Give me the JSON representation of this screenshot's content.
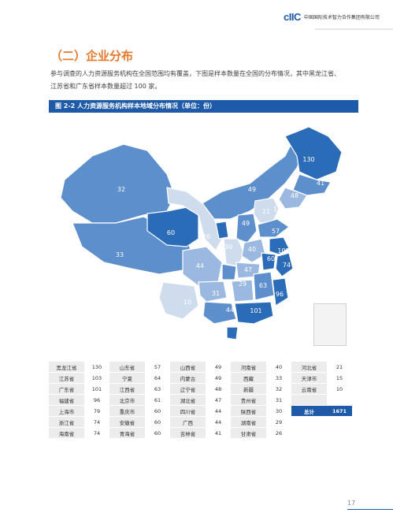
{
  "header": {
    "logo": "cIIC",
    "company": "中国国际技术智力合作集团有限公司"
  },
  "section_title": "（二）企业分布",
  "paragraph": [
    "参与调查的人力资源服务机构在全国范围均有覆盖，下图是样本数量在全国的分布情况，其中黑龙江省、",
    "江苏省和广东省样本数量超过 100 家。"
  ],
  "figure_title": "图 2-2  人力资源服务机构样本地域分布情况（单位：份）",
  "map_labels": [
    "130",
    "49",
    "41",
    "48",
    "21",
    "15",
    "57",
    "32",
    "60",
    "33",
    "26",
    "30",
    "40",
    "103",
    "60",
    "74",
    "49",
    "44",
    "47",
    "29",
    "63",
    "96",
    "31",
    "10",
    "44",
    "101"
  ],
  "colors": {
    "dark": "#2b6cb8",
    "mid": "#5d8fcd",
    "light": "#9bb9e0",
    "pale": "#cfdcee",
    "bar": "#1e5aa8"
  },
  "table": {
    "rows": [
      [
        [
          "黑龙江省",
          "130"
        ],
        [
          "山东省",
          "57"
        ],
        [
          "山西省",
          "49"
        ],
        [
          "河南省",
          "40"
        ],
        [
          "河北省",
          "21"
        ]
      ],
      [
        [
          "江苏省",
          "103"
        ],
        [
          "宁夏",
          "64"
        ],
        [
          "内蒙古",
          "49"
        ],
        [
          "西藏",
          "33"
        ],
        [
          "天津市",
          "15"
        ]
      ],
      [
        [
          "广东省",
          "101"
        ],
        [
          "江西省",
          "63"
        ],
        [
          "辽宁省",
          "48"
        ],
        [
          "新疆",
          "32"
        ],
        [
          "云南省",
          "10"
        ]
      ],
      [
        [
          "福建省",
          "96"
        ],
        [
          "北京市",
          "61"
        ],
        [
          "湖北省",
          "47"
        ],
        [
          "贵州省",
          "31"
        ]
      ],
      [
        [
          "上海市",
          "79"
        ],
        [
          "重庆市",
          "60"
        ],
        [
          "四川省",
          "44"
        ],
        [
          "陕西省",
          "30"
        ]
      ],
      [
        [
          "浙江省",
          "74"
        ],
        [
          "安徽省",
          "60"
        ],
        [
          "广西",
          "44"
        ],
        [
          "湖南省",
          "29"
        ]
      ],
      [
        [
          "海南省",
          "74"
        ],
        [
          "青海省",
          "60"
        ],
        [
          "吉林省",
          "41"
        ],
        [
          "甘肃省",
          "26"
        ]
      ]
    ],
    "total_label": "总计",
    "total_value": "1671"
  },
  "page_number": "17"
}
